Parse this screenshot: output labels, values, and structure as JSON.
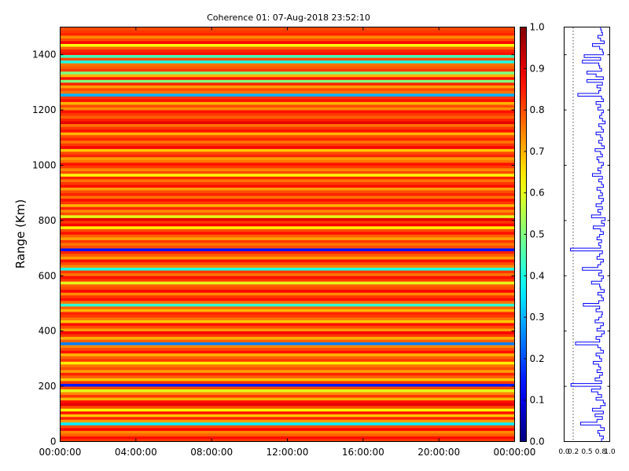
{
  "chart_data": [
    {
      "type": "heatmap",
      "title": "Coherence 01: 07-Aug-2018 23:52:10",
      "xlabel": "",
      "ylabel": "Range (Km)",
      "xlim": [
        0,
        24
      ],
      "ylim": [
        0,
        1500
      ],
      "x_tick_labels": [
        "00:00:00",
        "04:00:00",
        "08:00:00",
        "12:00:00",
        "16:00:00",
        "20:00:00",
        "00:00:00"
      ],
      "y_ticks": [
        0,
        200,
        400,
        600,
        800,
        1000,
        1200,
        1400
      ],
      "y_tick_labels": [
        "0",
        "200",
        "400",
        "600",
        "800",
        "1000",
        "1200",
        "1400"
      ],
      "colormap": "jet",
      "grid": false,
      "colorbar": {
        "range": [
          0,
          1
        ],
        "tick_labels": [
          "0.0",
          "0.1",
          "0.2",
          "0.3",
          "0.4",
          "0.5",
          "0.6",
          "0.7",
          "0.8",
          "0.9",
          "1.0"
        ]
      },
      "range_profile": {
        "band_height_km": 10,
        "mean_coherence": [
          0.82,
          0.86,
          0.78,
          0.74,
          0.88,
          0.8,
          0.36,
          0.72,
          0.84,
          0.68,
          0.86,
          0.62,
          0.8,
          0.9,
          0.86,
          0.7,
          0.82,
          0.74,
          0.6,
          0.8,
          0.15,
          0.82,
          0.68,
          0.78,
          0.84,
          0.72,
          0.8,
          0.76,
          0.64,
          0.82,
          0.78,
          0.7,
          0.86,
          0.8,
          0.74,
          0.25,
          0.78,
          0.7,
          0.82,
          0.88,
          0.72,
          0.8,
          0.86,
          0.68,
          0.76,
          0.82,
          0.84,
          0.7,
          0.78,
          0.42,
          0.76,
          0.86,
          0.82,
          0.74,
          0.88,
          0.8,
          0.78,
          0.6,
          0.82,
          0.86,
          0.76,
          0.82,
          0.4,
          0.74,
          0.8,
          0.86,
          0.72,
          0.78,
          0.84,
          0.14,
          0.8,
          0.76,
          0.82,
          0.72,
          0.78,
          0.86,
          0.8,
          0.64,
          0.88,
          0.82,
          0.9,
          0.6,
          0.8,
          0.74,
          0.84,
          0.7,
          0.82,
          0.86,
          0.76,
          0.84,
          0.8,
          0.72,
          0.86,
          0.82,
          0.76,
          0.84,
          0.62,
          0.8,
          0.74,
          0.82,
          0.86,
          0.76,
          0.72,
          0.84,
          0.8,
          0.68,
          0.88,
          0.82,
          0.76,
          0.84,
          0.8,
          0.7,
          0.86,
          0.82,
          0.76,
          0.9,
          0.84,
          0.78,
          0.82,
          0.86,
          0.74,
          0.8,
          0.7,
          0.86,
          0.82,
          0.3,
          0.76,
          0.8,
          0.72,
          0.84,
          0.5,
          0.86,
          0.7,
          0.5,
          0.82,
          0.78,
          0.76,
          0.4,
          0.8,
          0.44,
          0.86,
          0.84,
          0.78,
          0.62,
          0.88,
          0.8,
          0.74,
          0.84,
          0.82,
          0.8
        ]
      }
    }
  ]
}
